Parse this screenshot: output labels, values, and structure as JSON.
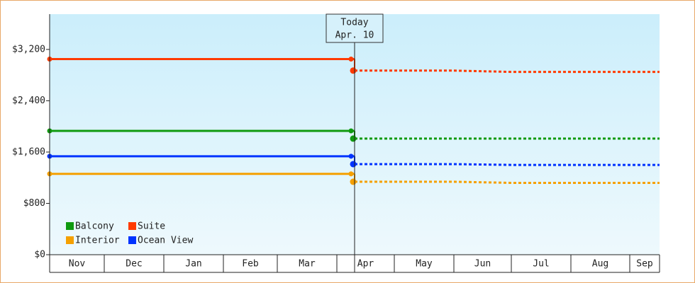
{
  "chart_data": {
    "type": "line",
    "categories": [
      "Nov",
      "Dec",
      "Jan",
      "Feb",
      "Mar",
      "Apr",
      "May",
      "Jun",
      "Jul",
      "Aug",
      "Sep"
    ],
    "ylim": [
      0,
      3750
    ],
    "yticks": [
      {
        "value": 0,
        "label": "$0"
      },
      {
        "value": 800,
        "label": "$800"
      },
      {
        "value": 1600,
        "label": "$1,600"
      },
      {
        "value": 2400,
        "label": "$2,400"
      },
      {
        "value": 3200,
        "label": "$3,200"
      }
    ],
    "annotation": {
      "title": "Today",
      "date": "Apr. 10"
    },
    "legend": "lower left",
    "series": [
      {
        "name": "Balcony",
        "color": "#0f9a0f",
        "values": [
          1930,
          1930,
          1930,
          1930,
          1930,
          1930,
          null,
          null,
          null,
          null,
          null
        ],
        "forecast": [
          null,
          null,
          null,
          null,
          null,
          1810,
          1810,
          1810,
          1810,
          1810,
          1810
        ]
      },
      {
        "name": "Suite",
        "color": "#ff3a00",
        "values": [
          3050,
          3050,
          3050,
          3050,
          3050,
          3050,
          null,
          null,
          null,
          null,
          null
        ],
        "forecast": [
          null,
          null,
          null,
          null,
          null,
          2870,
          2870,
          2870,
          2850,
          2850,
          2850
        ]
      },
      {
        "name": "Interior",
        "color": "#f5a000",
        "values": [
          1260,
          1260,
          1260,
          1260,
          1260,
          1260,
          null,
          null,
          null,
          null,
          null
        ],
        "forecast": [
          null,
          null,
          null,
          null,
          null,
          1137,
          1137,
          1137,
          1120,
          1120,
          1120
        ]
      },
      {
        "name": "Ocean View",
        "color": "#0033ff",
        "values": [
          1535,
          1535,
          1535,
          1535,
          1535,
          1535,
          null,
          null,
          null,
          null,
          null
        ],
        "forecast": [
          null,
          null,
          null,
          null,
          null,
          1412,
          1412,
          1412,
          1400,
          1400,
          1400
        ]
      }
    ]
  }
}
